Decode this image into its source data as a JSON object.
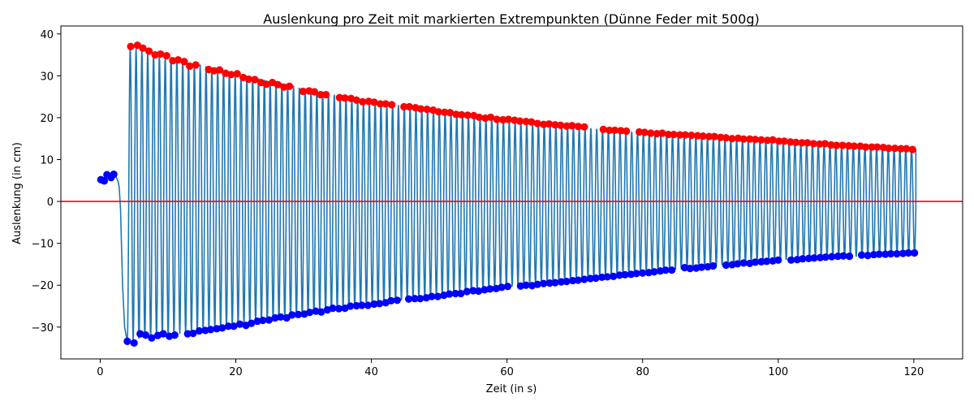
{
  "chart_data": {
    "type": "line",
    "title": "Auslenkung pro Zeit mit markierten Extrempunkten (Dünne Feder mit 500g)",
    "xlabel": "Zeit (in s)",
    "ylabel": "Auslenkung (in cm)",
    "xlim": [
      -5.8,
      127.2
    ],
    "ylim": [
      -37.6,
      41.9
    ],
    "xticks": [
      0,
      20,
      40,
      60,
      80,
      100,
      120
    ],
    "yticks": [
      -30,
      -20,
      -10,
      0,
      10,
      20,
      30,
      40
    ],
    "xtick_labels": [
      "0",
      "20",
      "40",
      "60",
      "80",
      "100",
      "120"
    ],
    "ytick_labels": [
      "−30",
      "−20",
      "−10",
      "0",
      "10",
      "20",
      "30",
      "40"
    ],
    "grid": false,
    "reference_line": {
      "y": 0,
      "color": "#ff0000"
    },
    "signal": {
      "color": "#1f77b4",
      "pre_oscillation": {
        "x": [
          0,
          0.5,
          1.0,
          1.5,
          2.0,
          2.3,
          2.6,
          2.8,
          3.0
        ],
        "y": [
          5.2,
          5.6,
          6.3,
          6.0,
          6.4,
          6.0,
          5.0,
          3.5,
          -2.0
        ]
      },
      "release_time": 3.0,
      "first_min_time": 4.0,
      "period": 0.86,
      "end_time": 120.3,
      "end_value": 12.5,
      "max_envelope": {
        "t": [
          4.5,
          20,
          40,
          60,
          80,
          100,
          120
        ],
        "y": [
          37.0,
          30.5,
          24.0,
          19.5,
          16.5,
          14.5,
          12.5
        ]
      },
      "min_envelope": {
        "t": [
          4.0,
          20,
          40,
          60,
          80,
          100,
          120
        ],
        "y": [
          -33.5,
          -29.8,
          -24.8,
          -20.5,
          -17.0,
          -14.2,
          -12.5
        ]
      }
    },
    "series": [
      {
        "name": "Maxima",
        "color": "#ff0000",
        "marker": "circle",
        "x": [
          4.5,
          5.5,
          6.3,
          7.2,
          8.1,
          8.9,
          9.8,
          10.7,
          11.5,
          12.4,
          13.2,
          14.1,
          16.0,
          16.8,
          17.6,
          18.5,
          19.3,
          20.2,
          21.1,
          21.9,
          22.8,
          23.7,
          24.5,
          25.4,
          26.2,
          27.1,
          27.9,
          29.9,
          30.8,
          31.6,
          32.5,
          33.3,
          35.3,
          36.1,
          37.0,
          37.8,
          38.7,
          39.6,
          40.4,
          41.3,
          42.1,
          43.0,
          44.8,
          45.6,
          46.5,
          47.3,
          48.2,
          49.1,
          49.9,
          50.8,
          51.6,
          52.5,
          53.3,
          54.2,
          55.1,
          55.9,
          56.8,
          57.6,
          58.5,
          59.4,
          60.2,
          61.1,
          61.9,
          62.8,
          63.6,
          64.5,
          65.4,
          66.2,
          67.1,
          67.9,
          68.8,
          69.6,
          70.5,
          71.4,
          74.2,
          75.1,
          75.9,
          76.8,
          77.6,
          79.5,
          80.3,
          81.2,
          82.1,
          82.9,
          83.8,
          84.6,
          85.5,
          86.3,
          87.2,
          88.1,
          88.9,
          89.8,
          90.6,
          91.5,
          92.3,
          93.2,
          94.1,
          94.9,
          95.8,
          96.6,
          97.5,
          98.4,
          99.2,
          100.1,
          100.9,
          101.8,
          102.6,
          103.5,
          104.3,
          105.2,
          106.1,
          106.9,
          107.8,
          108.6,
          109.5,
          110.4,
          111.2,
          112.1,
          112.9,
          113.8,
          114.6,
          115.5,
          116.3,
          117.2,
          118.1,
          118.9,
          119.8
        ],
        "y": [
          37.0,
          37.3,
          36.6,
          35.9,
          35.0,
          35.2,
          34.8,
          33.6,
          33.8,
          33.4,
          32.3,
          32.6,
          31.5,
          31.2,
          31.4,
          30.6,
          30.3,
          30.5,
          29.6,
          29.2,
          29.1,
          28.4,
          28.0,
          28.4,
          27.9,
          27.3,
          27.5,
          26.3,
          26.4,
          26.2,
          25.5,
          25.5,
          24.8,
          24.7,
          24.6,
          24.2,
          23.8,
          23.9,
          23.7,
          23.3,
          23.3,
          23.1,
          22.6,
          22.6,
          22.4,
          22.1,
          22.0,
          21.8,
          21.4,
          21.3,
          21.2,
          20.8,
          20.7,
          20.6,
          20.5,
          20.1,
          19.9,
          20.1,
          19.6,
          19.5,
          19.6,
          19.4,
          19.2,
          19.1,
          19.0,
          18.6,
          18.4,
          18.5,
          18.3,
          18.2,
          18.0,
          18.1,
          17.9,
          17.8,
          17.2,
          17.0,
          17.0,
          16.9,
          16.8,
          16.6,
          16.5,
          16.3,
          16.2,
          16.3,
          16.0,
          16.0,
          15.9,
          15.9,
          15.8,
          15.7,
          15.6,
          15.5,
          15.5,
          15.3,
          15.2,
          15.0,
          15.1,
          14.9,
          14.9,
          14.8,
          14.7,
          14.6,
          14.7,
          14.4,
          14.4,
          14.2,
          14.1,
          14.0,
          14.0,
          13.8,
          13.7,
          13.8,
          13.5,
          13.4,
          13.4,
          13.3,
          13.2,
          13.2,
          13.0,
          13.0,
          13.0,
          12.9,
          12.7,
          12.7,
          12.6,
          12.6,
          12.4
        ]
      },
      {
        "name": "Minima",
        "color": "#0000ff",
        "marker": "circle",
        "x": [
          0.1,
          0.6,
          1.0,
          1.6,
          2.0,
          4.0,
          5.0,
          5.9,
          6.7,
          7.6,
          8.5,
          9.3,
          10.2,
          11.0,
          12.9,
          13.7,
          14.6,
          15.5,
          16.3,
          17.2,
          18.0,
          18.9,
          19.7,
          20.6,
          21.5,
          22.3,
          23.2,
          24.0,
          24.9,
          25.8,
          26.6,
          27.5,
          28.3,
          29.2,
          30.1,
          30.9,
          31.8,
          32.6,
          33.5,
          34.3,
          35.2,
          36.1,
          36.9,
          37.8,
          38.6,
          39.5,
          40.4,
          41.2,
          42.1,
          42.9,
          43.8,
          45.5,
          46.4,
          47.2,
          48.1,
          48.9,
          49.8,
          50.7,
          51.5,
          52.4,
          53.2,
          54.1,
          55.0,
          55.8,
          56.7,
          57.5,
          58.4,
          59.2,
          60.1,
          62.0,
          62.8,
          63.7,
          64.5,
          65.4,
          66.3,
          67.1,
          68.0,
          68.8,
          69.7,
          70.5,
          71.4,
          72.3,
          73.1,
          74.0,
          74.8,
          75.7,
          76.6,
          77.4,
          78.3,
          79.1,
          80.0,
          80.9,
          81.7,
          82.6,
          83.4,
          84.3,
          86.2,
          87.0,
          87.9,
          88.7,
          89.6,
          90.4,
          92.3,
          93.2,
          94.0,
          94.9,
          95.8,
          96.6,
          97.5,
          98.3,
          99.2,
          100.0,
          101.9,
          102.8,
          103.6,
          104.5,
          105.3,
          106.2,
          107.0,
          107.9,
          108.8,
          109.6,
          110.5,
          112.3,
          113.2,
          114.1,
          114.9,
          115.8,
          116.6,
          117.5,
          118.4,
          119.2,
          120.1
        ],
        "y": [
          5.2,
          4.9,
          6.4,
          5.7,
          6.5,
          -33.4,
          -33.8,
          -31.6,
          -31.9,
          -32.6,
          -32.0,
          -31.6,
          -32.2,
          -31.9,
          -31.6,
          -31.5,
          -30.9,
          -30.8,
          -30.6,
          -30.4,
          -30.2,
          -29.8,
          -29.8,
          -29.3,
          -29.6,
          -29.1,
          -28.6,
          -28.4,
          -28.3,
          -27.8,
          -27.6,
          -27.8,
          -27.1,
          -27.0,
          -26.9,
          -26.5,
          -26.2,
          -26.4,
          -25.9,
          -25.5,
          -25.6,
          -25.5,
          -25.0,
          -24.9,
          -24.8,
          -24.8,
          -24.5,
          -24.4,
          -24.2,
          -23.7,
          -23.6,
          -23.3,
          -23.2,
          -23.2,
          -23.0,
          -22.7,
          -22.7,
          -22.4,
          -22.1,
          -22.0,
          -22.0,
          -21.5,
          -21.3,
          -21.4,
          -21.1,
          -20.9,
          -20.8,
          -20.5,
          -20.3,
          -20.2,
          -20.0,
          -20.1,
          -19.8,
          -19.6,
          -19.5,
          -19.4,
          -19.2,
          -19.1,
          -18.9,
          -18.8,
          -18.6,
          -18.4,
          -18.3,
          -18.1,
          -18.0,
          -17.9,
          -17.6,
          -17.5,
          -17.4,
          -17.2,
          -17.1,
          -17.0,
          -16.8,
          -16.6,
          -16.4,
          -16.4,
          -15.8,
          -16.0,
          -15.9,
          -15.7,
          -15.6,
          -15.4,
          -15.2,
          -15.1,
          -14.9,
          -14.7,
          -14.8,
          -14.5,
          -14.4,
          -14.3,
          -14.2,
          -14.0,
          -14.0,
          -13.9,
          -13.7,
          -13.6,
          -13.5,
          -13.4,
          -13.3,
          -13.2,
          -13.1,
          -13.0,
          -13.1,
          -12.8,
          -12.9,
          -12.7,
          -12.6,
          -12.6,
          -12.5,
          -12.5,
          -12.4,
          -12.3,
          -12.3
        ]
      }
    ]
  }
}
